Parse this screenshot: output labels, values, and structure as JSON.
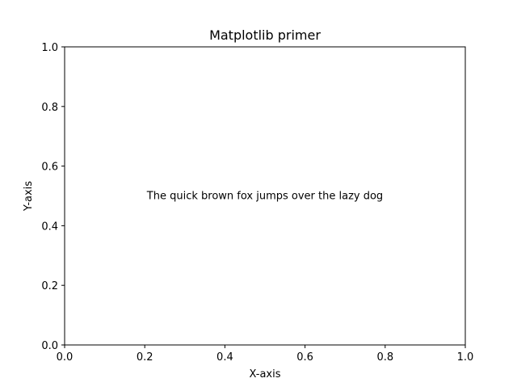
{
  "chart_data": {
    "type": "scatter",
    "title": "Matplotlib primer",
    "xlabel": "X-axis",
    "ylabel": "Y-axis",
    "xlim": [
      0.0,
      1.0
    ],
    "ylim": [
      0.0,
      1.0
    ],
    "xticks": [
      0.0,
      0.2,
      0.4,
      0.6,
      0.8,
      1.0
    ],
    "yticks": [
      0.0,
      0.2,
      0.4,
      0.6,
      0.8,
      1.0
    ],
    "xtick_labels": [
      "0.0",
      "0.2",
      "0.4",
      "0.6",
      "0.8",
      "1.0"
    ],
    "ytick_labels": [
      "0.0",
      "0.2",
      "0.4",
      "0.6",
      "0.8",
      "1.0"
    ],
    "grid": false,
    "series": [],
    "annotations": [
      {
        "text": "The quick brown fox jumps over the lazy dog",
        "x": 0.5,
        "y": 0.5,
        "ha": "center"
      }
    ]
  },
  "colors": {
    "axes": "#000000",
    "background": "#ffffff",
    "text": "#000000"
  }
}
